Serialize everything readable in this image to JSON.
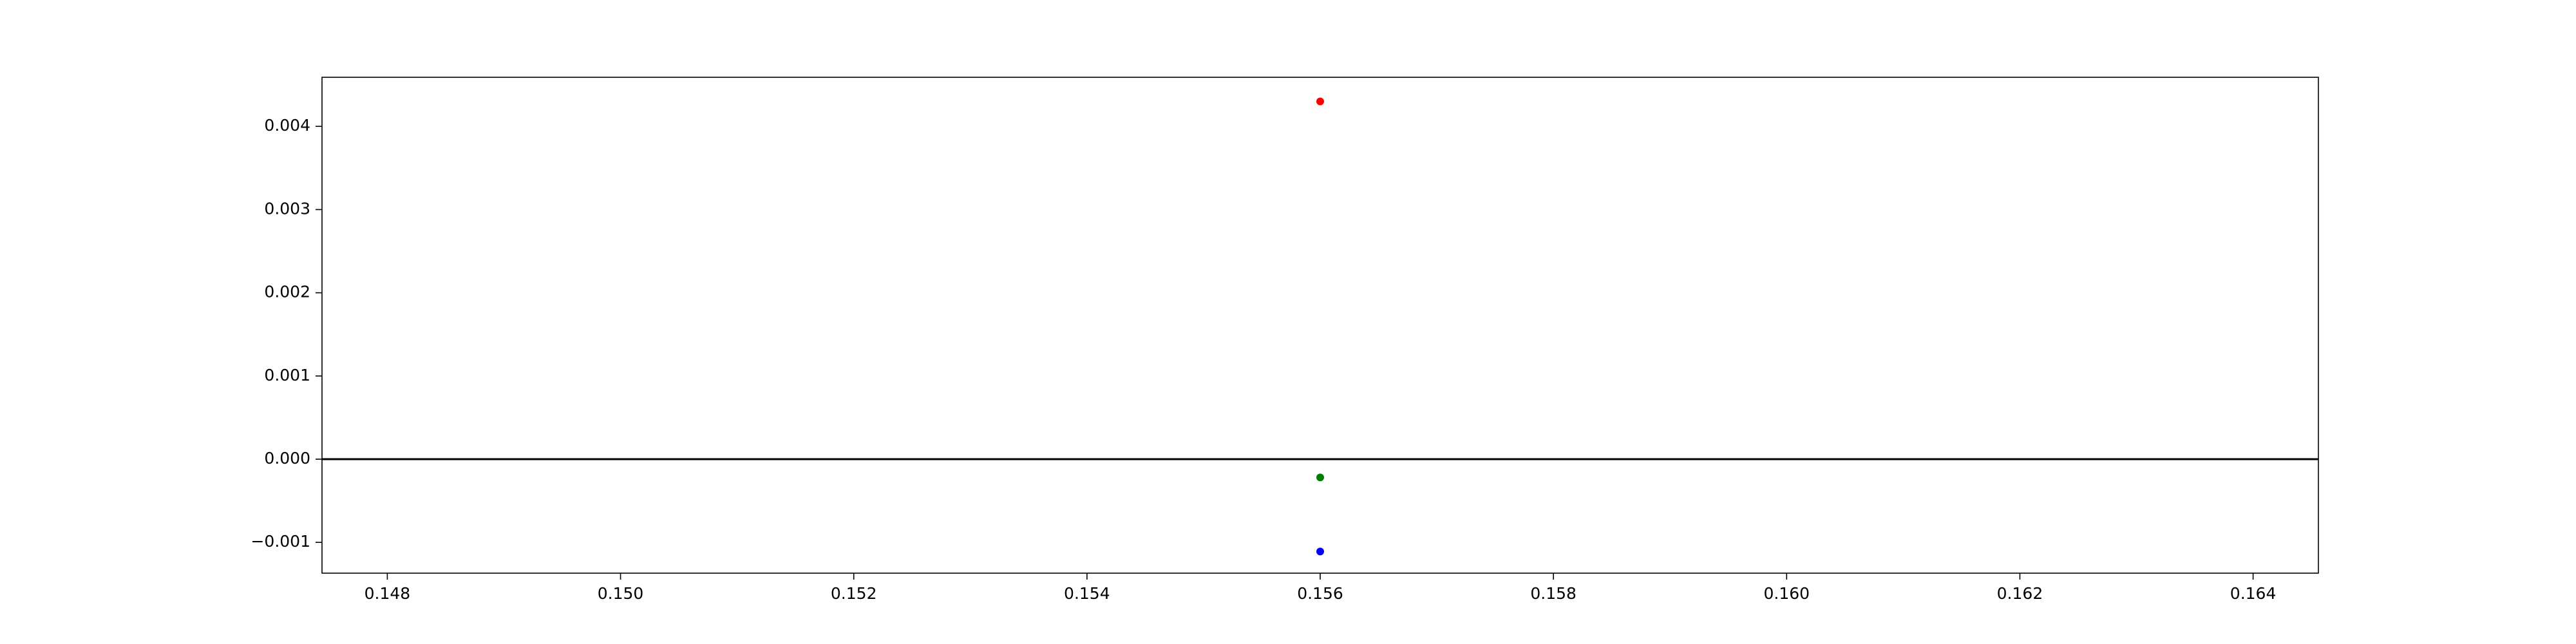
{
  "chart_data": {
    "type": "scatter",
    "title": "",
    "xlabel": "",
    "ylabel": "",
    "xlim": [
      0.14744,
      0.16456
    ],
    "ylim": [
      -0.00137,
      0.00459
    ],
    "grid": false,
    "xticks": [
      0.148,
      0.15,
      0.152,
      0.154,
      0.156,
      0.158,
      0.16,
      0.162,
      0.164
    ],
    "xtick_labels": [
      "0.148",
      "0.150",
      "0.152",
      "0.154",
      "0.156",
      "0.158",
      "0.160",
      "0.162",
      "0.164"
    ],
    "yticks": [
      -0.001,
      0.0,
      0.001,
      0.002,
      0.003,
      0.004
    ],
    "ytick_labels": [
      "−0.001",
      "0.000",
      "0.001",
      "0.002",
      "0.003",
      "0.004"
    ],
    "reference_line": {
      "y": 0,
      "color": "#000000"
    },
    "series": [
      {
        "color": "#ff0000",
        "points": [
          {
            "x": 0.156,
            "y": 0.0043
          }
        ]
      },
      {
        "color": "#008000",
        "points": [
          {
            "x": 0.156,
            "y": -0.00022
          }
        ]
      },
      {
        "color": "#0000ff",
        "points": [
          {
            "x": 0.156,
            "y": -0.00111
          }
        ]
      }
    ]
  }
}
